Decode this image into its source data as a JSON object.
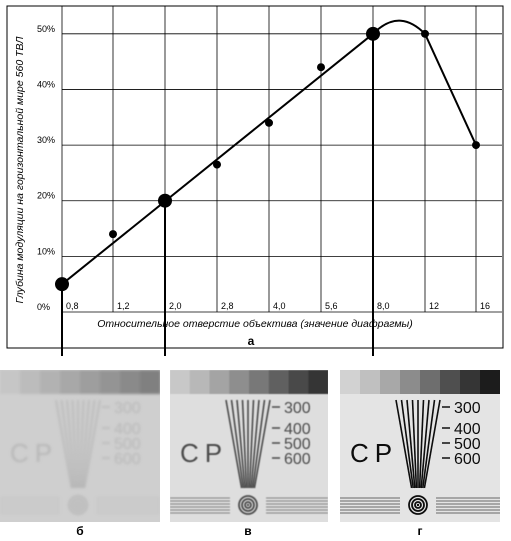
{
  "chart_data": {
    "type": "line",
    "ylabel": "Глубина модуляции на горизонтальной мире 560 ТВЛ",
    "xlabel": "Относительное отверстие объектива (значение диафрагмы)",
    "x_tick_labels": [
      "0,8",
      "1,2",
      "2,0",
      "2,8",
      "4,0",
      "5,6",
      "8,0",
      "12",
      "16"
    ],
    "y_tick_labels": [
      "0%",
      "10%",
      "20%",
      "30%",
      "40%",
      "50%"
    ],
    "ylim": [
      0,
      55
    ],
    "grid": true,
    "series": [
      {
        "x": [
          "0,8",
          "1,2",
          "2,0",
          "2,8",
          "4,0",
          "5,6",
          "8,0",
          "12",
          "16"
        ],
        "values": [
          5,
          14,
          20,
          26.5,
          34,
          44,
          50,
          50,
          30
        ]
      }
    ],
    "marked_points": [
      "0,8",
      "2,0",
      "8,0"
    ],
    "panel_label": "а"
  },
  "panels": [
    {
      "label": "б",
      "numbers": [
        "300",
        "400",
        "500",
        "600"
      ],
      "letters": "CP",
      "contrast": "low"
    },
    {
      "label": "в",
      "numbers": [
        "300",
        "400",
        "500",
        "600"
      ],
      "letters": "CP",
      "contrast": "medium"
    },
    {
      "label": "г",
      "numbers": [
        "300",
        "400",
        "500",
        "600"
      ],
      "letters": "CP",
      "contrast": "high"
    }
  ],
  "colors": {
    "line": "#000000",
    "grid": "#000000",
    "panel_bg": "#d8d8d8"
  }
}
